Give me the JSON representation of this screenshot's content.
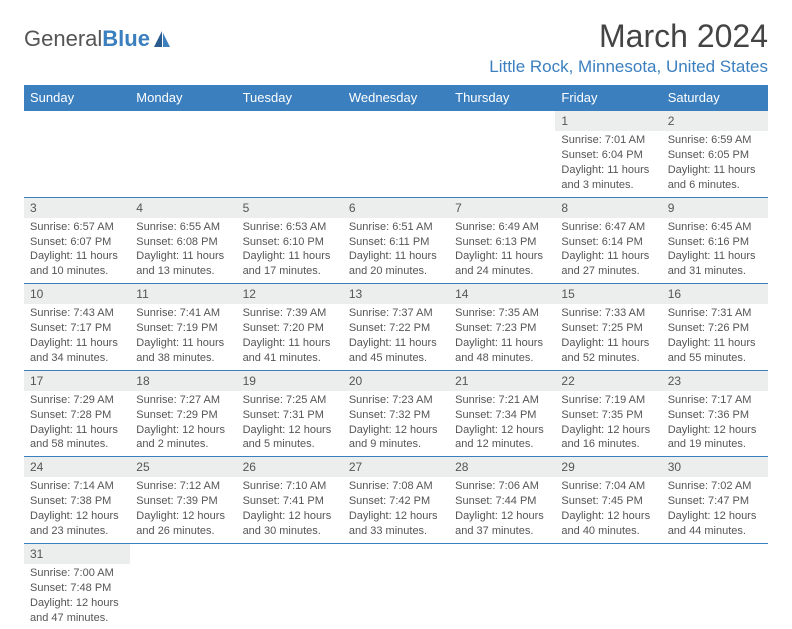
{
  "brand": {
    "general": "General",
    "blue": "Blue"
  },
  "title": "March 2024",
  "location": "Little Rock, Minnesota, United States",
  "accent_color": "#3b7fbf",
  "daynum_bg": "#eceded",
  "text_color": "#555555",
  "weekdays": [
    "Sunday",
    "Monday",
    "Tuesday",
    "Wednesday",
    "Thursday",
    "Friday",
    "Saturday"
  ],
  "weeks": [
    [
      null,
      null,
      null,
      null,
      null,
      {
        "n": "1",
        "sr": "Sunrise: 7:01 AM",
        "ss": "Sunset: 6:04 PM",
        "dl": "Daylight: 11 hours and 3 minutes."
      },
      {
        "n": "2",
        "sr": "Sunrise: 6:59 AM",
        "ss": "Sunset: 6:05 PM",
        "dl": "Daylight: 11 hours and 6 minutes."
      }
    ],
    [
      {
        "n": "3",
        "sr": "Sunrise: 6:57 AM",
        "ss": "Sunset: 6:07 PM",
        "dl": "Daylight: 11 hours and 10 minutes."
      },
      {
        "n": "4",
        "sr": "Sunrise: 6:55 AM",
        "ss": "Sunset: 6:08 PM",
        "dl": "Daylight: 11 hours and 13 minutes."
      },
      {
        "n": "5",
        "sr": "Sunrise: 6:53 AM",
        "ss": "Sunset: 6:10 PM",
        "dl": "Daylight: 11 hours and 17 minutes."
      },
      {
        "n": "6",
        "sr": "Sunrise: 6:51 AM",
        "ss": "Sunset: 6:11 PM",
        "dl": "Daylight: 11 hours and 20 minutes."
      },
      {
        "n": "7",
        "sr": "Sunrise: 6:49 AM",
        "ss": "Sunset: 6:13 PM",
        "dl": "Daylight: 11 hours and 24 minutes."
      },
      {
        "n": "8",
        "sr": "Sunrise: 6:47 AM",
        "ss": "Sunset: 6:14 PM",
        "dl": "Daylight: 11 hours and 27 minutes."
      },
      {
        "n": "9",
        "sr": "Sunrise: 6:45 AM",
        "ss": "Sunset: 6:16 PM",
        "dl": "Daylight: 11 hours and 31 minutes."
      }
    ],
    [
      {
        "n": "10",
        "sr": "Sunrise: 7:43 AM",
        "ss": "Sunset: 7:17 PM",
        "dl": "Daylight: 11 hours and 34 minutes."
      },
      {
        "n": "11",
        "sr": "Sunrise: 7:41 AM",
        "ss": "Sunset: 7:19 PM",
        "dl": "Daylight: 11 hours and 38 minutes."
      },
      {
        "n": "12",
        "sr": "Sunrise: 7:39 AM",
        "ss": "Sunset: 7:20 PM",
        "dl": "Daylight: 11 hours and 41 minutes."
      },
      {
        "n": "13",
        "sr": "Sunrise: 7:37 AM",
        "ss": "Sunset: 7:22 PM",
        "dl": "Daylight: 11 hours and 45 minutes."
      },
      {
        "n": "14",
        "sr": "Sunrise: 7:35 AM",
        "ss": "Sunset: 7:23 PM",
        "dl": "Daylight: 11 hours and 48 minutes."
      },
      {
        "n": "15",
        "sr": "Sunrise: 7:33 AM",
        "ss": "Sunset: 7:25 PM",
        "dl": "Daylight: 11 hours and 52 minutes."
      },
      {
        "n": "16",
        "sr": "Sunrise: 7:31 AM",
        "ss": "Sunset: 7:26 PM",
        "dl": "Daylight: 11 hours and 55 minutes."
      }
    ],
    [
      {
        "n": "17",
        "sr": "Sunrise: 7:29 AM",
        "ss": "Sunset: 7:28 PM",
        "dl": "Daylight: 11 hours and 58 minutes."
      },
      {
        "n": "18",
        "sr": "Sunrise: 7:27 AM",
        "ss": "Sunset: 7:29 PM",
        "dl": "Daylight: 12 hours and 2 minutes."
      },
      {
        "n": "19",
        "sr": "Sunrise: 7:25 AM",
        "ss": "Sunset: 7:31 PM",
        "dl": "Daylight: 12 hours and 5 minutes."
      },
      {
        "n": "20",
        "sr": "Sunrise: 7:23 AM",
        "ss": "Sunset: 7:32 PM",
        "dl": "Daylight: 12 hours and 9 minutes."
      },
      {
        "n": "21",
        "sr": "Sunrise: 7:21 AM",
        "ss": "Sunset: 7:34 PM",
        "dl": "Daylight: 12 hours and 12 minutes."
      },
      {
        "n": "22",
        "sr": "Sunrise: 7:19 AM",
        "ss": "Sunset: 7:35 PM",
        "dl": "Daylight: 12 hours and 16 minutes."
      },
      {
        "n": "23",
        "sr": "Sunrise: 7:17 AM",
        "ss": "Sunset: 7:36 PM",
        "dl": "Daylight: 12 hours and 19 minutes."
      }
    ],
    [
      {
        "n": "24",
        "sr": "Sunrise: 7:14 AM",
        "ss": "Sunset: 7:38 PM",
        "dl": "Daylight: 12 hours and 23 minutes."
      },
      {
        "n": "25",
        "sr": "Sunrise: 7:12 AM",
        "ss": "Sunset: 7:39 PM",
        "dl": "Daylight: 12 hours and 26 minutes."
      },
      {
        "n": "26",
        "sr": "Sunrise: 7:10 AM",
        "ss": "Sunset: 7:41 PM",
        "dl": "Daylight: 12 hours and 30 minutes."
      },
      {
        "n": "27",
        "sr": "Sunrise: 7:08 AM",
        "ss": "Sunset: 7:42 PM",
        "dl": "Daylight: 12 hours and 33 minutes."
      },
      {
        "n": "28",
        "sr": "Sunrise: 7:06 AM",
        "ss": "Sunset: 7:44 PM",
        "dl": "Daylight: 12 hours and 37 minutes."
      },
      {
        "n": "29",
        "sr": "Sunrise: 7:04 AM",
        "ss": "Sunset: 7:45 PM",
        "dl": "Daylight: 12 hours and 40 minutes."
      },
      {
        "n": "30",
        "sr": "Sunrise: 7:02 AM",
        "ss": "Sunset: 7:47 PM",
        "dl": "Daylight: 12 hours and 44 minutes."
      }
    ],
    [
      {
        "n": "31",
        "sr": "Sunrise: 7:00 AM",
        "ss": "Sunset: 7:48 PM",
        "dl": "Daylight: 12 hours and 47 minutes."
      },
      null,
      null,
      null,
      null,
      null,
      null
    ]
  ]
}
